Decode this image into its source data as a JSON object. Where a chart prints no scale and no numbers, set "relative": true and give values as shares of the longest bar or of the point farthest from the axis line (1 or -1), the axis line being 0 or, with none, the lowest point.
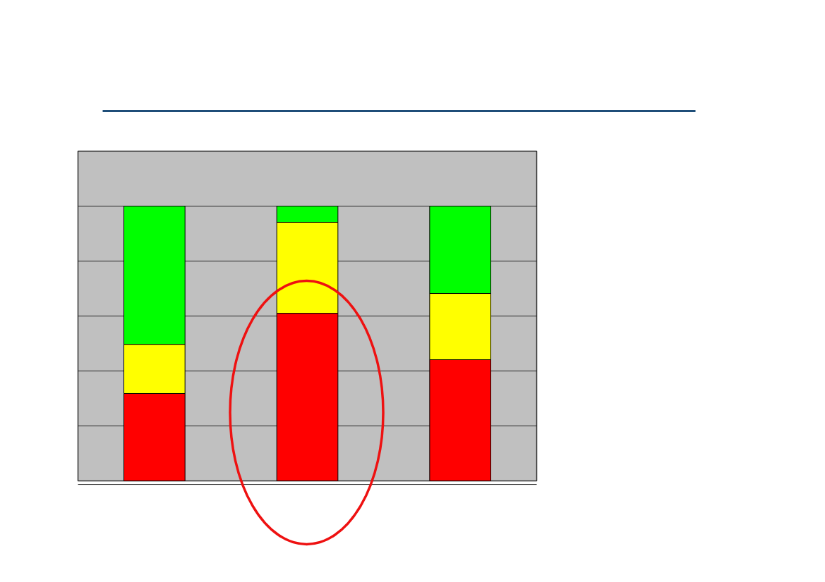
{
  "chart_data": {
    "type": "bar",
    "stacked": true,
    "relative": true,
    "grid": "y",
    "categories": [
      null,
      null,
      null
    ],
    "series": [
      {
        "color": "#ff0000",
        "values": [
          0.318,
          0.61,
          0.441
        ]
      },
      {
        "color": "#ffff00",
        "values": [
          0.179,
          0.331,
          0.241
        ]
      },
      {
        "color": "#00ff00",
        "values": [
          0.503,
          0.059,
          0.318
        ]
      }
    ]
  }
}
